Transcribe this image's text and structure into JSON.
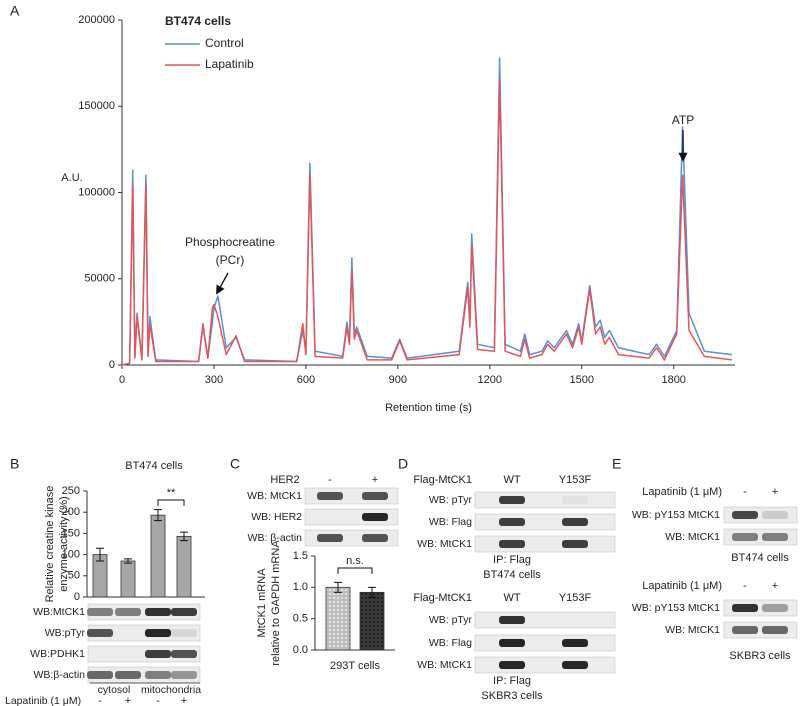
{
  "chart_data": [
    {
      "type": "line",
      "xlabel": "Retention time (s)",
      "ylabel": "A.U.",
      "legend_title": "BT474 cells",
      "annotations": [
        [
          "Phosphocreatine",
          "(PCr)"
        ],
        [
          "ATP"
        ]
      ],
      "xlim": [
        0,
        2000
      ],
      "xticks": [
        0,
        300,
        600,
        900,
        1200,
        1500,
        1800
      ],
      "ylim": [
        0,
        200000
      ],
      "yticks": [
        0,
        50000,
        100000,
        150000,
        200000
      ],
      "x": [
        0,
        25,
        35,
        42,
        49,
        65,
        78,
        85,
        91,
        110,
        250,
        264,
        280,
        295,
        300,
        313,
        340,
        372,
        400,
        570,
        590,
        600,
        613,
        630,
        720,
        734,
        742,
        750,
        758,
        766,
        800,
        880,
        906,
        930,
        1100,
        1128,
        1135,
        1141,
        1160,
        1215,
        1232,
        1250,
        1300,
        1314,
        1330,
        1370,
        1389,
        1410,
        1450,
        1470,
        1490,
        1500,
        1526,
        1545,
        1560,
        1575,
        1590,
        1620,
        1720,
        1744,
        1770,
        1810,
        1829,
        1850,
        1900,
        1990
      ],
      "series": [
        {
          "name": "Control",
          "color": "#5b8fd6",
          "values": [
            0,
            1000,
            113000,
            5000,
            30000,
            4000,
            110000,
            6000,
            28000,
            3000,
            2000,
            22000,
            4000,
            25000,
            33000,
            40000,
            10000,
            16000,
            3000,
            2000,
            20000,
            8000,
            117000,
            8000,
            5000,
            25000,
            14000,
            62000,
            18000,
            22000,
            5000,
            4000,
            15000,
            4000,
            8000,
            48000,
            25000,
            76000,
            12000,
            10000,
            178000,
            12000,
            8000,
            18000,
            6000,
            8000,
            14000,
            10000,
            20000,
            12000,
            24000,
            14000,
            46000,
            22000,
            26000,
            16000,
            20000,
            10000,
            6000,
            12000,
            5000,
            20000,
            138000,
            30000,
            8000,
            6000
          ]
        },
        {
          "name": "Lapatinib",
          "color": "#e0575a",
          "values": [
            0,
            1000,
            105000,
            4000,
            28000,
            3000,
            105000,
            5000,
            24000,
            2000,
            2000,
            24000,
            4000,
            33000,
            35000,
            28000,
            6000,
            17000,
            2000,
            2000,
            24000,
            6000,
            110000,
            5000,
            4000,
            22000,
            12000,
            55000,
            15000,
            20000,
            3000,
            3000,
            14000,
            3000,
            6000,
            45000,
            22000,
            70000,
            9000,
            8000,
            165000,
            8000,
            5000,
            15000,
            4000,
            6000,
            12000,
            8000,
            18000,
            10000,
            22000,
            12000,
            44000,
            18000,
            22000,
            12000,
            16000,
            6000,
            4000,
            10000,
            3000,
            18000,
            110000,
            20000,
            5000,
            3000
          ]
        }
      ]
    },
    {
      "type": "bar",
      "title": "BT474 cells",
      "ylabel": [
        "Relative creatine kinase",
        "enzyme activity (%)"
      ],
      "categories": [
        null,
        null,
        null,
        null
      ],
      "values": [
        100,
        85,
        193,
        143
      ],
      "errors": [
        15,
        5,
        13,
        10
      ],
      "color": "#a6a6a6",
      "ylim": [
        0,
        250
      ],
      "yticks": [
        0,
        50,
        100,
        150,
        200,
        250
      ],
      "annotation": "**"
    },
    {
      "type": "bar",
      "xlabel": "293T cells",
      "ylabel": [
        "MtCK1 mRNA",
        "relative to GAPDH mRNA"
      ],
      "categories": [
        null,
        null
      ],
      "values": [
        1.0,
        0.92
      ],
      "errors": [
        0.08,
        0.08
      ],
      "colors": [
        "#bdbdbd",
        "#3a3a3a"
      ],
      "ylim": [
        0,
        1.5
      ],
      "yticks": [
        {
          "value": 0,
          "label": "0.0"
        },
        0.5,
        {
          "value": 1,
          "label": "1.0"
        },
        1.5
      ],
      "annotation": "n.s."
    }
  ],
  "panels": [
    "A",
    "B",
    "C",
    "D",
    "E"
  ],
  "blot_B": {
    "rows": [
      "WB:MtCK1",
      "WB:pTyr",
      "WB:PDHK1",
      "WB:β-actin"
    ],
    "groups": [
      "cytosol",
      "mitochondria"
    ],
    "treatment": "Lapatinib (1 μM)",
    "signs": [
      "-",
      "+",
      "-",
      "+"
    ]
  },
  "blot_C": {
    "header": "HER2",
    "signs": [
      "-",
      "+"
    ],
    "rows": [
      "WB: MtCK1",
      "WB: HER2",
      "WB: β-actin"
    ]
  },
  "blot_D": [
    {
      "header": "Flag-MtCK1",
      "lanes": [
        "WT",
        "Y153F"
      ],
      "rows": [
        "WB: pTyr",
        "WB: Flag",
        "WB: MtCK1"
      ],
      "caption": [
        "IP: Flag",
        "BT474 cells"
      ]
    },
    {
      "header": "Flag-MtCK1",
      "lanes": [
        "WT",
        "Y153F"
      ],
      "rows": [
        "WB: pTyr",
        "WB: Flag",
        "WB: MtCK1"
      ],
      "caption": [
        "IP: Flag",
        "SKBR3 cells"
      ]
    }
  ],
  "blot_E": [
    {
      "header": "Lapatinib (1 μM)",
      "signs": [
        "-",
        "+"
      ],
      "rows": [
        "WB: pY153 MtCK1",
        "WB: MtCK1"
      ],
      "caption": "BT474 cells"
    },
    {
      "header": "Lapatinib (1 μM)",
      "signs": [
        "-",
        "+"
      ],
      "rows": [
        "WB: pY153 MtCK1",
        "WB: MtCK1"
      ],
      "caption": "SKBR3 cells"
    }
  ]
}
